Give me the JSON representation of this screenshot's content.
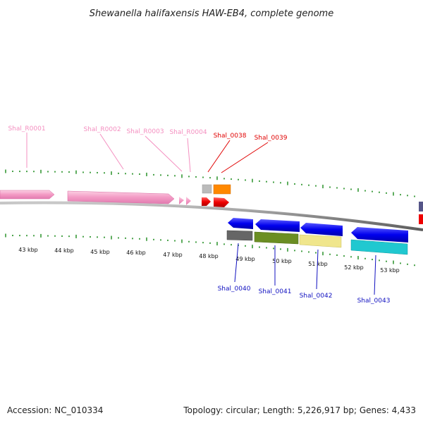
{
  "title": "Shewanella halifaxensis HAW-EB4, complete genome",
  "scale": {
    "tick_labels": [
      "43 kbp",
      "44 kbp",
      "45 kbp",
      "46 kbp",
      "47 kbp",
      "48 kbp",
      "49 kbp",
      "50 kbp",
      "51 kbp",
      "52 kbp",
      "53 kbp"
    ]
  },
  "genes_top": [
    {
      "label": "Shal_R0001",
      "color": "#f48fc0"
    },
    {
      "label": "Shal_R0002",
      "color": "#f48fc0"
    },
    {
      "label": "Shal_R0003",
      "color": "#f48fc0"
    },
    {
      "label": "Shal_R0004",
      "color": "#f48fc0"
    },
    {
      "label": "Shal_0038",
      "color": "#e00000"
    },
    {
      "label": "Shal_0039",
      "color": "#e00000"
    }
  ],
  "genes_bottom": [
    {
      "label": "Shal_0040",
      "color": "#1010c0"
    },
    {
      "label": "Shal_0041",
      "color": "#1010c0"
    },
    {
      "label": "Shal_0042",
      "color": "#1010c0"
    },
    {
      "label": "Shal_0043",
      "color": "#1010c0"
    }
  ],
  "colors": {
    "rna": "#f6a3c8",
    "forward_cds": "#ee0000",
    "reverse_cds": "#0000ee",
    "tick": "#1a8a1a",
    "backbone": "#888888",
    "cog_grey": "#bbbbbb",
    "cog_orange": "#ff8800",
    "cog_darkgrey": "#666666",
    "cog_olive": "#6b8e23",
    "cog_khaki": "#f0e68c",
    "cog_cyan": "#20c8d0",
    "cog_purple": "#555588"
  },
  "footer": {
    "accession": "Accession: NC_010334",
    "summary": "Topology: circular; Length: 5,226,917 bp; Genes: 4,433"
  }
}
